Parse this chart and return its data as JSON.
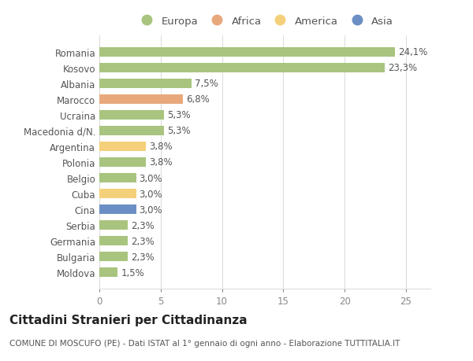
{
  "categories": [
    "Romania",
    "Kosovo",
    "Albania",
    "Marocco",
    "Ucraina",
    "Macedonia d/N.",
    "Argentina",
    "Polonia",
    "Belgio",
    "Cuba",
    "Cina",
    "Serbia",
    "Germania",
    "Bulgaria",
    "Moldova"
  ],
  "values": [
    24.1,
    23.3,
    7.5,
    6.8,
    5.3,
    5.3,
    3.8,
    3.8,
    3.0,
    3.0,
    3.0,
    2.3,
    2.3,
    2.3,
    1.5
  ],
  "labels": [
    "24,1%",
    "23,3%",
    "7,5%",
    "6,8%",
    "5,3%",
    "5,3%",
    "3,8%",
    "3,8%",
    "3,0%",
    "3,0%",
    "3,0%",
    "2,3%",
    "2,3%",
    "2,3%",
    "1,5%"
  ],
  "colors": [
    "#a8c47e",
    "#a8c47e",
    "#a8c47e",
    "#e8a87c",
    "#a8c47e",
    "#a8c47e",
    "#f5d07a",
    "#a8c47e",
    "#a8c47e",
    "#f5d07a",
    "#6b8fc4",
    "#a8c47e",
    "#a8c47e",
    "#a8c47e",
    "#a8c47e"
  ],
  "legend": {
    "Europa": "#a8c47e",
    "Africa": "#e8a87c",
    "America": "#f5d07a",
    "Asia": "#6b8fc4"
  },
  "xlim": [
    0,
    27
  ],
  "xticks": [
    0,
    5,
    10,
    15,
    20,
    25
  ],
  "title": "Cittadini Stranieri per Cittadinanza",
  "subtitle": "COMUNE DI MOSCUFO (PE) - Dati ISTAT al 1° gennaio di ogni anno - Elaborazione TUTTITALIA.IT",
  "bg_color": "#ffffff",
  "grid_color": "#dddddd",
  "bar_height": 0.6,
  "label_fontsize": 8.5,
  "tick_fontsize": 8.5,
  "title_fontsize": 11,
  "subtitle_fontsize": 7.5,
  "legend_fontsize": 9.5
}
